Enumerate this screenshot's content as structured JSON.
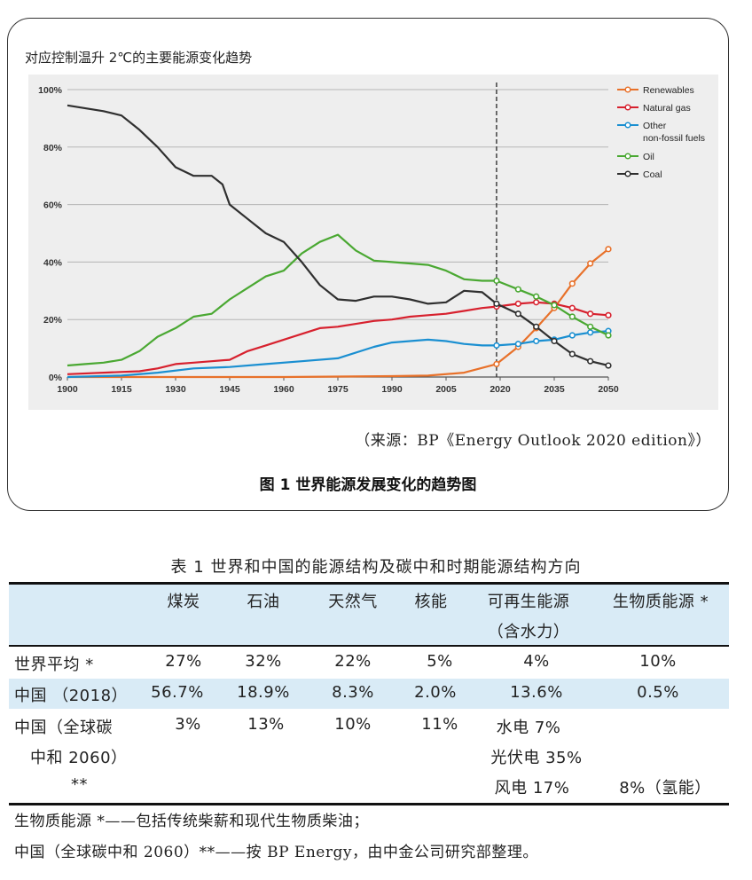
{
  "figure": {
    "subtitle": "对应控制温升 2℃的主要能源变化趋势",
    "source": "（来源：BP《Energy Outlook 2020 edition》）",
    "caption": "图 1 世界能源发展变化的趋势图"
  },
  "chart_data": {
    "type": "line",
    "xlim": [
      1900,
      2050
    ],
    "ylim": [
      0,
      100
    ],
    "x_ticks": [
      "1900",
      "1915",
      "1930",
      "1945",
      "1960",
      "1975",
      "1990",
      "2005",
      "2020",
      "2035",
      "2050"
    ],
    "y_ticks": [
      "0%",
      "20%",
      "40%",
      "60%",
      "80%",
      "100%"
    ],
    "projection_start": 2019,
    "legend_position": "top-right",
    "series": [
      {
        "name": "Renewables",
        "color": "#e8712a",
        "points": [
          [
            1900,
            0
          ],
          [
            1960,
            0
          ],
          [
            1990,
            0.3
          ],
          [
            2000,
            0.5
          ],
          [
            2010,
            1.5
          ],
          [
            2019,
            4.5
          ],
          [
            2025,
            10.5
          ],
          [
            2030,
            17
          ],
          [
            2035,
            24
          ],
          [
            2040,
            32.5
          ],
          [
            2045,
            39.5
          ],
          [
            2050,
            44.5
          ]
        ],
        "markers_from": 2019
      },
      {
        "name": "Natural gas",
        "color": "#d7212e",
        "points": [
          [
            1900,
            1
          ],
          [
            1910,
            1.5
          ],
          [
            1920,
            2
          ],
          [
            1925,
            3
          ],
          [
            1930,
            4.5
          ],
          [
            1935,
            5
          ],
          [
            1940,
            5.5
          ],
          [
            1945,
            6
          ],
          [
            1950,
            9
          ],
          [
            1955,
            11
          ],
          [
            1960,
            13
          ],
          [
            1965,
            15
          ],
          [
            1970,
            17
          ],
          [
            1975,
            17.5
          ],
          [
            1980,
            18.5
          ],
          [
            1985,
            19.5
          ],
          [
            1990,
            20
          ],
          [
            1995,
            21
          ],
          [
            2000,
            21.5
          ],
          [
            2005,
            22
          ],
          [
            2010,
            23
          ],
          [
            2015,
            24
          ],
          [
            2019,
            24.5
          ],
          [
            2025,
            25.5
          ],
          [
            2030,
            26
          ],
          [
            2035,
            25.5
          ],
          [
            2040,
            24
          ],
          [
            2045,
            22
          ],
          [
            2050,
            21.5
          ]
        ],
        "markers_from": 2019
      },
      {
        "name": "Other non-fossil fuels",
        "color": "#1a8fd1",
        "points": [
          [
            1900,
            0
          ],
          [
            1915,
            0.5
          ],
          [
            1925,
            1.5
          ],
          [
            1935,
            3
          ],
          [
            1945,
            3.5
          ],
          [
            1955,
            4.5
          ],
          [
            1965,
            5.5
          ],
          [
            1975,
            6.5
          ],
          [
            1985,
            10.5
          ],
          [
            1990,
            12
          ],
          [
            1995,
            12.5
          ],
          [
            2000,
            13
          ],
          [
            2005,
            12.5
          ],
          [
            2010,
            11.5
          ],
          [
            2015,
            11
          ],
          [
            2019,
            11
          ],
          [
            2025,
            11.5
          ],
          [
            2030,
            12.5
          ],
          [
            2035,
            13
          ],
          [
            2040,
            14.5
          ],
          [
            2045,
            15.5
          ],
          [
            2050,
            16
          ]
        ],
        "markers_from": 2019
      },
      {
        "name": "Oil",
        "color": "#4aa832",
        "points": [
          [
            1900,
            4
          ],
          [
            1905,
            4.5
          ],
          [
            1910,
            5
          ],
          [
            1915,
            6
          ],
          [
            1920,
            9
          ],
          [
            1925,
            14
          ],
          [
            1930,
            17
          ],
          [
            1935,
            21
          ],
          [
            1940,
            22
          ],
          [
            1945,
            27
          ],
          [
            1950,
            31
          ],
          [
            1955,
            35
          ],
          [
            1960,
            37
          ],
          [
            1965,
            43
          ],
          [
            1970,
            47
          ],
          [
            1975,
            49.5
          ],
          [
            1980,
            44
          ],
          [
            1985,
            40.5
          ],
          [
            1990,
            40
          ],
          [
            1995,
            39.5
          ],
          [
            2000,
            39
          ],
          [
            2005,
            37
          ],
          [
            2010,
            34
          ],
          [
            2015,
            33.5
          ],
          [
            2019,
            33.5
          ],
          [
            2025,
            30.5
          ],
          [
            2030,
            28
          ],
          [
            2035,
            25
          ],
          [
            2040,
            21
          ],
          [
            2045,
            17.5
          ],
          [
            2050,
            14.5
          ]
        ],
        "markers_from": 2019
      },
      {
        "name": "Coal",
        "color": "#2f2f2f",
        "points": [
          [
            1900,
            94.5
          ],
          [
            1905,
            93.5
          ],
          [
            1910,
            92.5
          ],
          [
            1915,
            91
          ],
          [
            1920,
            86
          ],
          [
            1925,
            80
          ],
          [
            1930,
            73
          ],
          [
            1935,
            70
          ],
          [
            1940,
            70
          ],
          [
            1943,
            67
          ],
          [
            1945,
            60
          ],
          [
            1950,
            55
          ],
          [
            1955,
            50
          ],
          [
            1960,
            47
          ],
          [
            1965,
            40
          ],
          [
            1970,
            32
          ],
          [
            1975,
            27
          ],
          [
            1980,
            26.5
          ],
          [
            1985,
            28
          ],
          [
            1990,
            28
          ],
          [
            1995,
            27
          ],
          [
            2000,
            25.5
          ],
          [
            2005,
            26
          ],
          [
            2010,
            30
          ],
          [
            2015,
            29.5
          ],
          [
            2019,
            25.5
          ],
          [
            2025,
            22
          ],
          [
            2030,
            17.5
          ],
          [
            2035,
            12.5
          ],
          [
            2040,
            8
          ],
          [
            2045,
            5.5
          ],
          [
            2050,
            4
          ]
        ],
        "markers_from": 2019
      }
    ]
  },
  "table": {
    "caption": "表 1   世界和中国的能源结构及碳中和时期能源结构方向",
    "headers": {
      "coal": "煤炭",
      "oil": "石油",
      "gas": "天然气",
      "nuclear": "核能",
      "renew_1": "可再生能源",
      "renew_2": "（含水力）",
      "bio": "生物质能源 *"
    },
    "row_world": {
      "label": "世界平均 *",
      "coal": "27%",
      "oil": "32%",
      "gas": "22%",
      "nuclear": "5%",
      "renew": "4%",
      "bio": "10%"
    },
    "row_china2018": {
      "label": "中国 （2018）",
      "coal": "56.7%",
      "oil": "18.9%",
      "gas": "8.3%",
      "nuclear": "2.0%",
      "renew": "13.6%",
      "bio": "0.5%"
    },
    "row_china2060": {
      "label_1": "中国（全球碳",
      "label_2": "中和 2060）",
      "label_3": "**",
      "coal": "3%",
      "oil": "13%",
      "gas": "10%",
      "nuclear": "11%",
      "renew_1": "水电 7%",
      "renew_2": "光伏电 35%",
      "renew_3": "风电 17%",
      "bio": "8%（氢能）"
    },
    "note_1": "生物质能源 *——包括传统柴薪和现代生物质柴油；",
    "note_2": "中国（全球碳中和 2060）**——按 BP Energy，由中金公司研究部整理。"
  }
}
